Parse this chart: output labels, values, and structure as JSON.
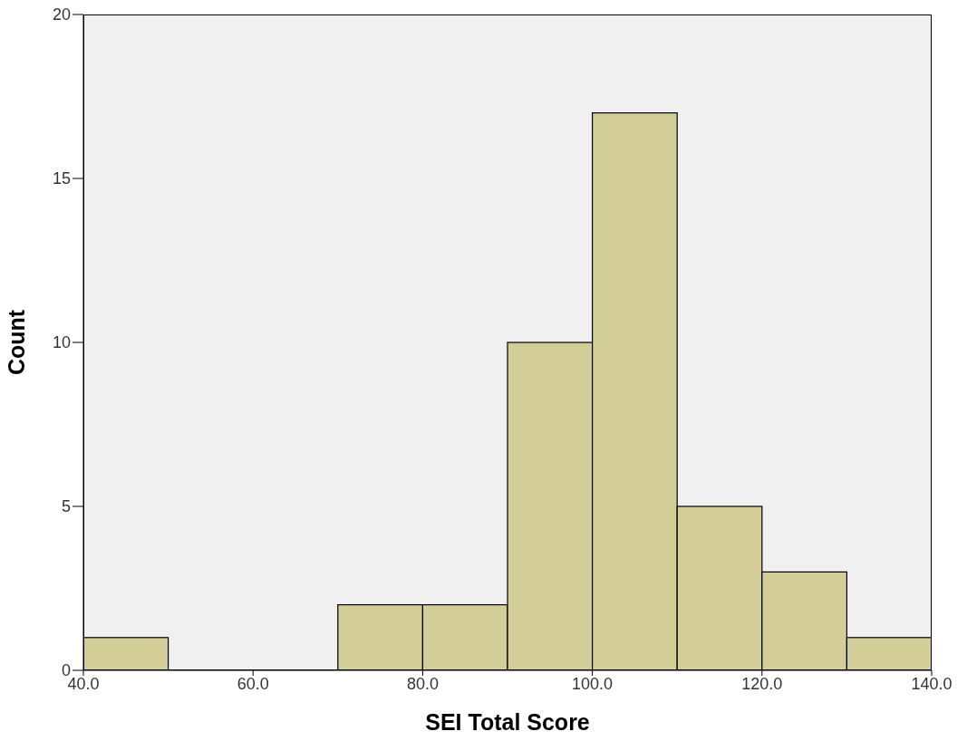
{
  "chart_data": {
    "type": "histogram",
    "xlabel": "SEI Total Score",
    "ylabel": "Count",
    "bins": [
      40,
      50,
      60,
      70,
      80,
      90,
      100,
      110,
      120,
      130,
      140
    ],
    "values": [
      1,
      0,
      0,
      2,
      2,
      10,
      17,
      5,
      3,
      1
    ],
    "color": "#d3ce97",
    "xlim": [
      40,
      140
    ],
    "xticks": [
      {
        "value": 40,
        "label": "40.0"
      },
      {
        "value": 60,
        "label": "60.0"
      },
      {
        "value": 80,
        "label": "80.0"
      },
      {
        "value": 100,
        "label": "100.0"
      },
      {
        "value": 120,
        "label": "120.0"
      },
      {
        "value": 140,
        "label": "140.0"
      }
    ],
    "ylim": [
      0,
      20
    ],
    "yticks": [
      0,
      5,
      10,
      15,
      20
    ],
    "grid": false,
    "legend": false
  }
}
